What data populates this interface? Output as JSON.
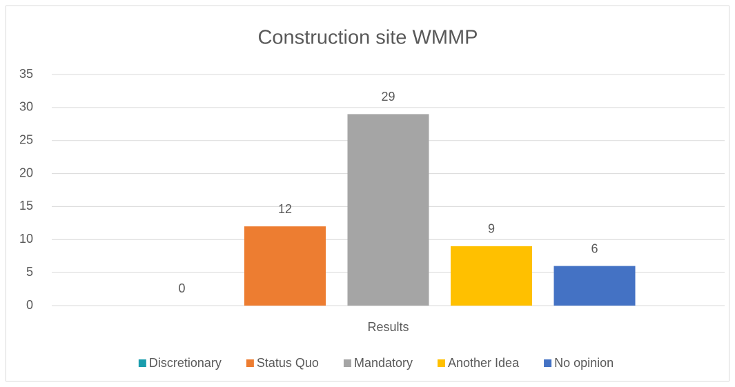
{
  "chart_data": {
    "type": "bar",
    "title": "Construction site WMMP",
    "categories": [
      "Results"
    ],
    "series": [
      {
        "name": "Discretionary",
        "color": "#1a9dad",
        "values": [
          0
        ]
      },
      {
        "name": "Status Quo",
        "color": "#ed7d31",
        "values": [
          12
        ]
      },
      {
        "name": "Mandatory",
        "color": "#a5a5a5",
        "values": [
          29
        ]
      },
      {
        "name": "Another Idea",
        "color": "#ffc000",
        "values": [
          9
        ]
      },
      {
        "name": "No opinion",
        "color": "#4472c4",
        "values": [
          6
        ]
      }
    ],
    "ylim": [
      0,
      35
    ],
    "yticks": [
      0,
      5,
      10,
      15,
      20,
      25,
      30,
      35
    ],
    "grid": true,
    "legend": "bottom",
    "data_labels": true
  }
}
